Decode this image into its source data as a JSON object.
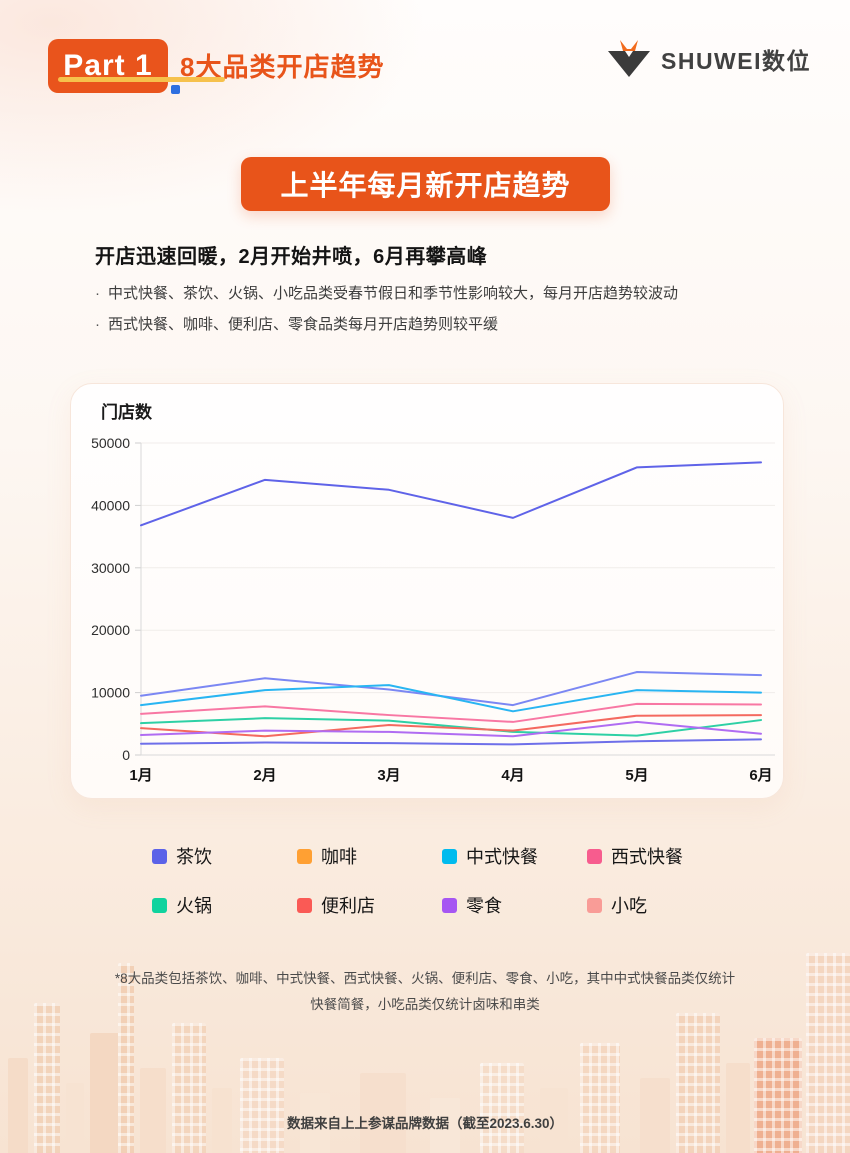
{
  "header": {
    "part_label": "Part 1",
    "part_title": "8大品类开店趋势",
    "accent_orange": "#E8541A",
    "underline_yellow": "#F6C14C",
    "square_blue": "#2E6FE0"
  },
  "logo": {
    "brand_text": "SHUWEI数位"
  },
  "banner": {
    "title": "上半年每月新开店趋势"
  },
  "intro": {
    "headline": "开店迅速回暖，2月开始井喷，6月再攀高峰",
    "bullet1": "中式快餐、茶饮、火锅、小吃品类受春节假日和季节性影响较大，每月开店趋势较波动",
    "bullet2": "西式快餐、咖啡、便利店、零食品类每月开店趋势则较平缓"
  },
  "chart_data": {
    "type": "line",
    "title": "门店数",
    "x": [
      "1月",
      "2月",
      "3月",
      "4月",
      "5月",
      "6月"
    ],
    "ylim": [
      0,
      50000
    ],
    "yticks": [
      0,
      10000,
      20000,
      30000,
      40000,
      50000
    ],
    "grid": true,
    "legend_position": "bottom",
    "series": [
      {
        "name": "茶饮",
        "line_color": "#5F63E8",
        "values": [
          36800,
          44100,
          42500,
          38000,
          46100,
          46900
        ]
      },
      {
        "name": "小吃",
        "line_color": "#7B87F3",
        "values": [
          9500,
          12300,
          10500,
          8000,
          13300,
          12800
        ]
      },
      {
        "name": "中式快餐",
        "line_color": "#29B5F2",
        "values": [
          8000,
          10400,
          11200,
          7000,
          10400,
          10000
        ]
      },
      {
        "name": "西式快餐",
        "line_color": "#F877A3",
        "values": [
          6600,
          7800,
          6400,
          5300,
          8200,
          8100
        ]
      },
      {
        "name": "火锅",
        "line_color": "#2ED0A5",
        "values": [
          5100,
          5900,
          5500,
          3700,
          3100,
          5600
        ]
      },
      {
        "name": "便利店",
        "line_color": "#F4695F",
        "values": [
          4300,
          3000,
          4800,
          3900,
          6300,
          6400
        ]
      },
      {
        "name": "零食",
        "line_color": "#B06CF2",
        "values": [
          3200,
          3900,
          3700,
          3000,
          5300,
          3400
        ]
      },
      {
        "name": "咖啡",
        "line_color": "#6E6FE9",
        "values": [
          1800,
          2000,
          1900,
          1700,
          2200,
          2500
        ]
      }
    ],
    "legend": [
      {
        "label": "茶饮",
        "color": "#5B62E8"
      },
      {
        "label": "咖啡",
        "color": "#FFA033"
      },
      {
        "label": "中式快餐",
        "color": "#00BBEE"
      },
      {
        "label": "西式快餐",
        "color": "#F75C8E"
      },
      {
        "label": "火锅",
        "color": "#10D39E"
      },
      {
        "label": "便利店",
        "color": "#FA5A55"
      },
      {
        "label": "零食",
        "color": "#A656F2"
      },
      {
        "label": "小吃",
        "color": "#F99C97"
      }
    ]
  },
  "footnote": {
    "line1": "*8大品类包括茶饮、咖啡、中式快餐、西式快餐、火锅、便利店、零食、小吃，其中中式快餐品类仅统计",
    "line2": "快餐简餐，小吃品类仅统计卤味和串类"
  },
  "footer": {
    "source": "数据来自上上参谋品牌数据（截至2023.6.30）"
  }
}
